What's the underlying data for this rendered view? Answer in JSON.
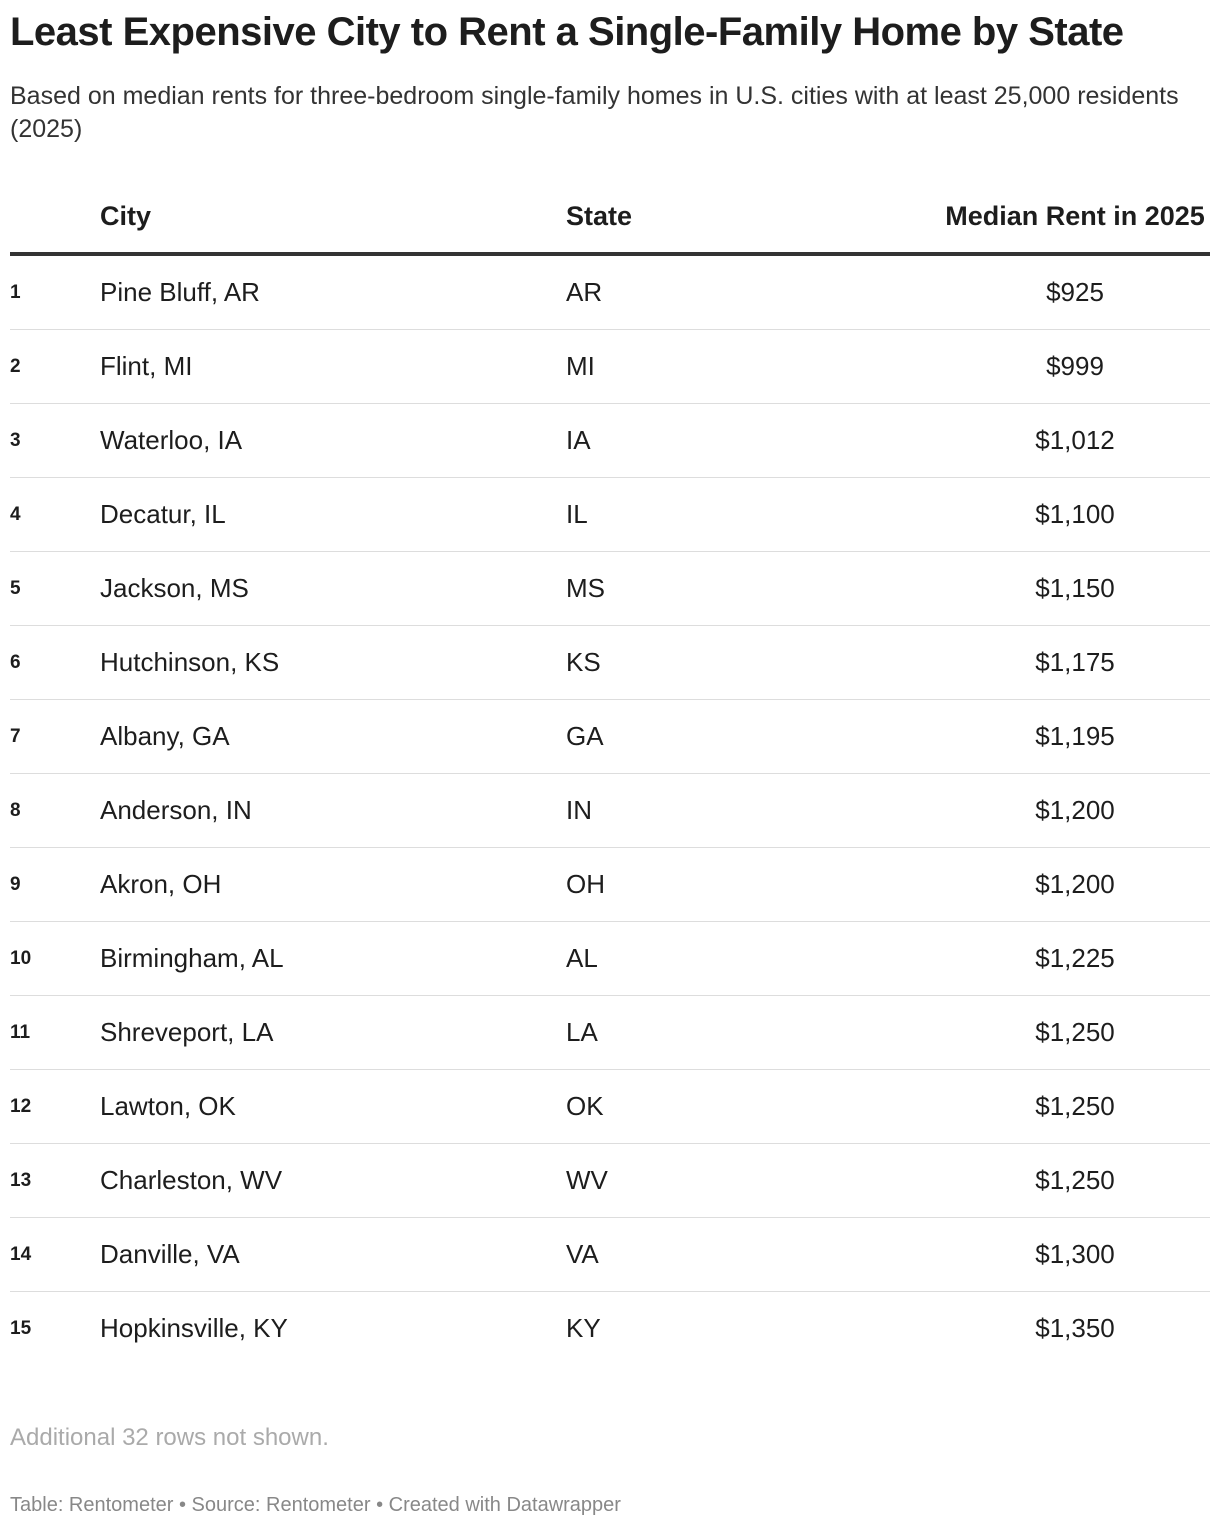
{
  "header": {
    "title": "Least Expensive City to Rent a Single-Family Home by State",
    "subtitle": "Based on median rents for three-bedroom single-family homes in U.S. cities with at least 25,000 residents (2025)"
  },
  "table": {
    "columns": [
      "City",
      "State",
      "Median Rent in 2025"
    ],
    "rows": [
      [
        "1",
        "Pine Bluff, AR",
        "AR",
        "$925"
      ],
      [
        "2",
        "Flint, MI",
        "MI",
        "$999"
      ],
      [
        "3",
        "Waterloo, IA",
        "IA",
        "$1,012"
      ],
      [
        "4",
        "Decatur, IL",
        "IL",
        "$1,100"
      ],
      [
        "5",
        "Jackson, MS",
        "MS",
        "$1,150"
      ],
      [
        "6",
        "Hutchinson, KS",
        "KS",
        "$1,175"
      ],
      [
        "7",
        "Albany, GA",
        "GA",
        "$1,195"
      ],
      [
        "8",
        "Anderson, IN",
        "IN",
        "$1,200"
      ],
      [
        "9",
        "Akron, OH",
        "OH",
        "$1,200"
      ],
      [
        "10",
        "Birmingham, AL",
        "AL",
        "$1,225"
      ],
      [
        "11",
        "Shreveport, LA",
        "LA",
        "$1,250"
      ],
      [
        "12",
        "Lawton, OK",
        "OK",
        "$1,250"
      ],
      [
        "13",
        "Charleston, WV",
        "WV",
        "$1,250"
      ],
      [
        "14",
        "Danville, VA",
        "VA",
        "$1,300"
      ],
      [
        "15",
        "Hopkinsville, KY",
        "KY",
        "$1,350"
      ]
    ]
  },
  "footer": {
    "note": "Additional 32 rows not shown.",
    "credits": "Table: Rentometer • Source: Rentometer • Created with Datawrapper"
  }
}
